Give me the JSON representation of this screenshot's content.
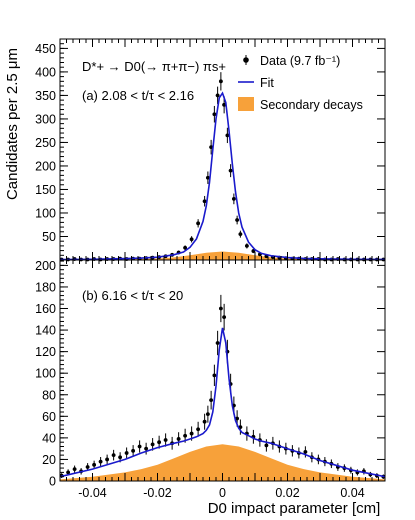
{
  "chart_data": [
    {
      "type": "scatter",
      "panel_label": "(a) 2.08 < t/τ < 2.16",
      "process": "D*+ → D0(→ π+π−) πs+",
      "xlim": [
        -0.05,
        0.05
      ],
      "ylim": [
        0,
        470
      ],
      "y_ticks": [
        50,
        100,
        150,
        200,
        250,
        300,
        350,
        400,
        450
      ],
      "legend": {
        "placement": "top-right",
        "entries": [
          "Data (9.7 fb⁻¹)",
          "Fit",
          "Secondary decays"
        ]
      },
      "series": [
        {
          "name": "Data (9.7 fb⁻¹)",
          "x": [
            -0.0495,
            -0.0475,
            -0.0455,
            -0.0435,
            -0.0415,
            -0.0395,
            -0.0375,
            -0.0355,
            -0.0335,
            -0.0315,
            -0.0295,
            -0.0275,
            -0.0255,
            -0.0235,
            -0.0215,
            -0.0195,
            -0.0175,
            -0.0155,
            -0.0135,
            -0.0115,
            -0.0095,
            -0.0075,
            -0.0055,
            -0.0045,
            -0.0035,
            -0.0025,
            -0.0015,
            -0.0005,
            0.0005,
            0.0015,
            0.0025,
            0.0035,
            0.0045,
            0.0055,
            0.0075,
            0.0095,
            0.0115,
            0.0135,
            0.0155,
            0.0175,
            0.0195,
            0.0215,
            0.0235,
            0.0255,
            0.0275,
            0.0295,
            0.0315,
            0.0335,
            0.0355,
            0.0375,
            0.0395,
            0.0415,
            0.0435,
            0.0455,
            0.0475,
            0.0495
          ],
          "y": [
            1,
            1,
            2,
            1,
            1,
            2,
            1,
            2,
            2,
            3,
            2,
            3,
            3,
            4,
            5,
            6,
            8,
            11,
            16,
            26,
            44,
            78,
            125,
            175,
            240,
            310,
            350,
            380,
            330,
            265,
            190,
            130,
            85,
            55,
            30,
            19,
            12,
            8,
            6,
            5,
            4,
            3,
            3,
            2,
            2,
            2,
            1,
            1,
            2,
            1,
            1,
            1,
            1,
            1,
            1,
            1
          ]
        },
        {
          "name": "Fit",
          "x": [
            -0.05,
            -0.04,
            -0.03,
            -0.025,
            -0.02,
            -0.015,
            -0.012,
            -0.01,
            -0.008,
            -0.006,
            -0.005,
            -0.004,
            -0.003,
            -0.002,
            -0.001,
            0,
            0.001,
            0.002,
            0.003,
            0.004,
            0.005,
            0.006,
            0.008,
            0.01,
            0.012,
            0.015,
            0.02,
            0.025,
            0.03,
            0.04,
            0.05
          ],
          "y": [
            1,
            1.5,
            3,
            4,
            6,
            11,
            17,
            27,
            45,
            82,
            115,
            165,
            235,
            300,
            345,
            355,
            335,
            275,
            205,
            145,
            100,
            70,
            38,
            22,
            14,
            9,
            5,
            3.5,
            2.5,
            1.5,
            1
          ]
        },
        {
          "name": "Secondary decays",
          "x": [
            -0.05,
            -0.04,
            -0.03,
            -0.02,
            -0.015,
            -0.01,
            -0.005,
            0,
            0.005,
            0.01,
            0.015,
            0.02,
            0.03,
            0.04,
            0.05
          ],
          "y": [
            0.3,
            0.6,
            1.3,
            3,
            5.5,
            10,
            15.5,
            18,
            15.5,
            10,
            5.5,
            3,
            1.3,
            0.6,
            0.3
          ]
        }
      ]
    },
    {
      "type": "scatter",
      "panel_label": "(b) 6.16 < t/τ < 20",
      "xlim": [
        -0.05,
        0.05
      ],
      "ylim": [
        0,
        205
      ],
      "y_ticks": [
        0,
        20,
        40,
        60,
        80,
        100,
        120,
        140,
        160,
        180,
        200
      ],
      "xlabel": "D0 impact parameter [cm]",
      "x_ticks": [
        -0.04,
        -0.02,
        0,
        0.02,
        0.04
      ],
      "series": [
        {
          "name": "Data (9.7 fb⁻¹)",
          "x": [
            -0.0495,
            -0.0475,
            -0.0455,
            -0.0435,
            -0.0415,
            -0.0395,
            -0.0375,
            -0.0355,
            -0.0335,
            -0.0315,
            -0.0295,
            -0.0275,
            -0.0255,
            -0.0235,
            -0.0215,
            -0.0195,
            -0.0175,
            -0.0155,
            -0.0135,
            -0.0115,
            -0.0095,
            -0.0075,
            -0.0055,
            -0.0045,
            -0.0035,
            -0.0025,
            -0.0015,
            -0.0005,
            0.0005,
            0.0015,
            0.0025,
            0.0035,
            0.0045,
            0.0055,
            0.0075,
            0.0095,
            0.0115,
            0.0135,
            0.0155,
            0.0175,
            0.0195,
            0.0215,
            0.0235,
            0.0255,
            0.0275,
            0.0295,
            0.0315,
            0.0335,
            0.0355,
            0.0375,
            0.0395,
            0.0415,
            0.0435,
            0.0455,
            0.0475,
            0.0495
          ],
          "y": [
            5,
            8,
            11,
            9,
            13,
            15,
            18,
            20,
            24,
            22,
            26,
            28,
            32,
            30,
            34,
            36,
            38,
            35,
            39,
            42,
            44,
            48,
            55,
            62,
            75,
            98,
            128,
            160,
            152,
            120,
            90,
            70,
            58,
            50,
            44,
            41,
            38,
            33,
            35,
            32,
            30,
            28,
            26,
            27,
            22,
            20,
            18,
            16,
            13,
            12,
            10,
            8,
            9,
            6,
            5,
            4
          ]
        },
        {
          "name": "Fit",
          "x": [
            -0.05,
            -0.04,
            -0.03,
            -0.025,
            -0.02,
            -0.015,
            -0.012,
            -0.01,
            -0.008,
            -0.006,
            -0.005,
            -0.004,
            -0.003,
            -0.002,
            -0.001,
            0,
            0.001,
            0.002,
            0.003,
            0.004,
            0.005,
            0.006,
            0.008,
            0.01,
            0.012,
            0.015,
            0.02,
            0.025,
            0.03,
            0.04,
            0.05
          ],
          "y": [
            4,
            11,
            20,
            26,
            31,
            35,
            37,
            39,
            41,
            44,
            47,
            52,
            64,
            88,
            122,
            142,
            128,
            95,
            70,
            56,
            49,
            45,
            42,
            39,
            37,
            35,
            30,
            25,
            19,
            10,
            4
          ]
        },
        {
          "name": "Secondary decays",
          "x": [
            -0.05,
            -0.04,
            -0.03,
            -0.025,
            -0.02,
            -0.015,
            -0.01,
            -0.005,
            0,
            0.005,
            0.01,
            0.015,
            0.02,
            0.025,
            0.03,
            0.04,
            0.05
          ],
          "y": [
            1.5,
            4,
            8,
            11,
            15,
            21,
            27,
            32,
            34,
            32,
            27,
            21,
            15,
            11,
            8,
            4,
            1.5
          ]
        }
      ]
    }
  ],
  "ylabel": "Candidates per 2.5 μm",
  "colors": {
    "fit": "#1a1acc",
    "secondary": "#f7a13a",
    "data": "#000000"
  }
}
